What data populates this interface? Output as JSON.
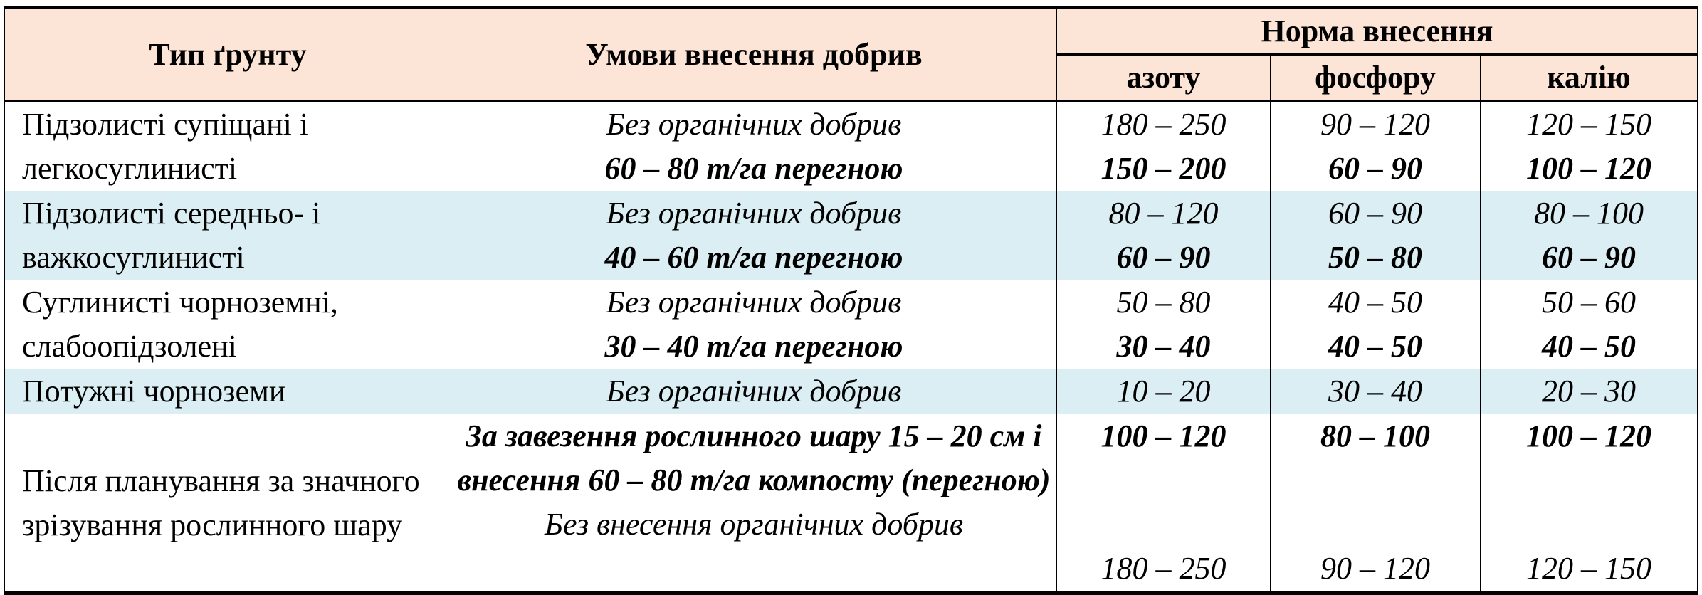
{
  "table": {
    "headers": {
      "soil_type": "Тип ґрунту",
      "conditions": "Умови внесення добрив",
      "norm": "Норма внесення",
      "nitrogen": "азоту",
      "phosphorus": "фосфору",
      "potassium": "калію"
    },
    "row_colors": {
      "header": "#FCE4D6",
      "highlight": "#DAEEF3"
    },
    "rows": [
      {
        "soil": "Підзолисті супіщані і легкосуглинисті",
        "cond": [
          "Без органічних добрив",
          "60 – 80 т/га перегною"
        ],
        "n": [
          "180 – 250",
          "150 – 200"
        ],
        "p": [
          "90 – 120",
          "60 – 90"
        ],
        "k": [
          "120 – 150",
          "100 – 120"
        ]
      },
      {
        "soil": "Підзолисті середньо- і важкосуглинисті",
        "cond": [
          "Без органічних добрив",
          "40 – 60 т/га перегною"
        ],
        "n": [
          "80 – 120",
          "60 – 90"
        ],
        "p": [
          "60 – 90",
          "50 – 80"
        ],
        "k": [
          "80 – 100",
          "60 – 90"
        ]
      },
      {
        "soil": "Суглинисті чорноземні, слабоопідзолені",
        "cond": [
          "Без органічних добрив",
          "30 – 40 т/га перегною"
        ],
        "n": [
          "50 – 80",
          "30 – 40"
        ],
        "p": [
          "40 – 50",
          "40 – 50"
        ],
        "k": [
          "50 – 60",
          "40 – 50"
        ]
      },
      {
        "soil": "Потужні чорноземи",
        "cond": [
          "Без органічних добрив"
        ],
        "n": [
          "10 – 20"
        ],
        "p": [
          "30 – 40"
        ],
        "k": [
          "20 – 30"
        ]
      },
      {
        "soil": "Після планування за значного зрізування рослинного шару",
        "cond": [
          "За завезення рослинного шару 15 – 20 см і внесення 60 – 80 т/га компосту (перегною)",
          "Без внесення органічних добрив"
        ],
        "n": [
          "100 – 120",
          "180 – 250"
        ],
        "p": [
          "80 – 100",
          "90 – 120"
        ],
        "k": [
          "100 – 120",
          "120 – 150"
        ]
      }
    ]
  }
}
